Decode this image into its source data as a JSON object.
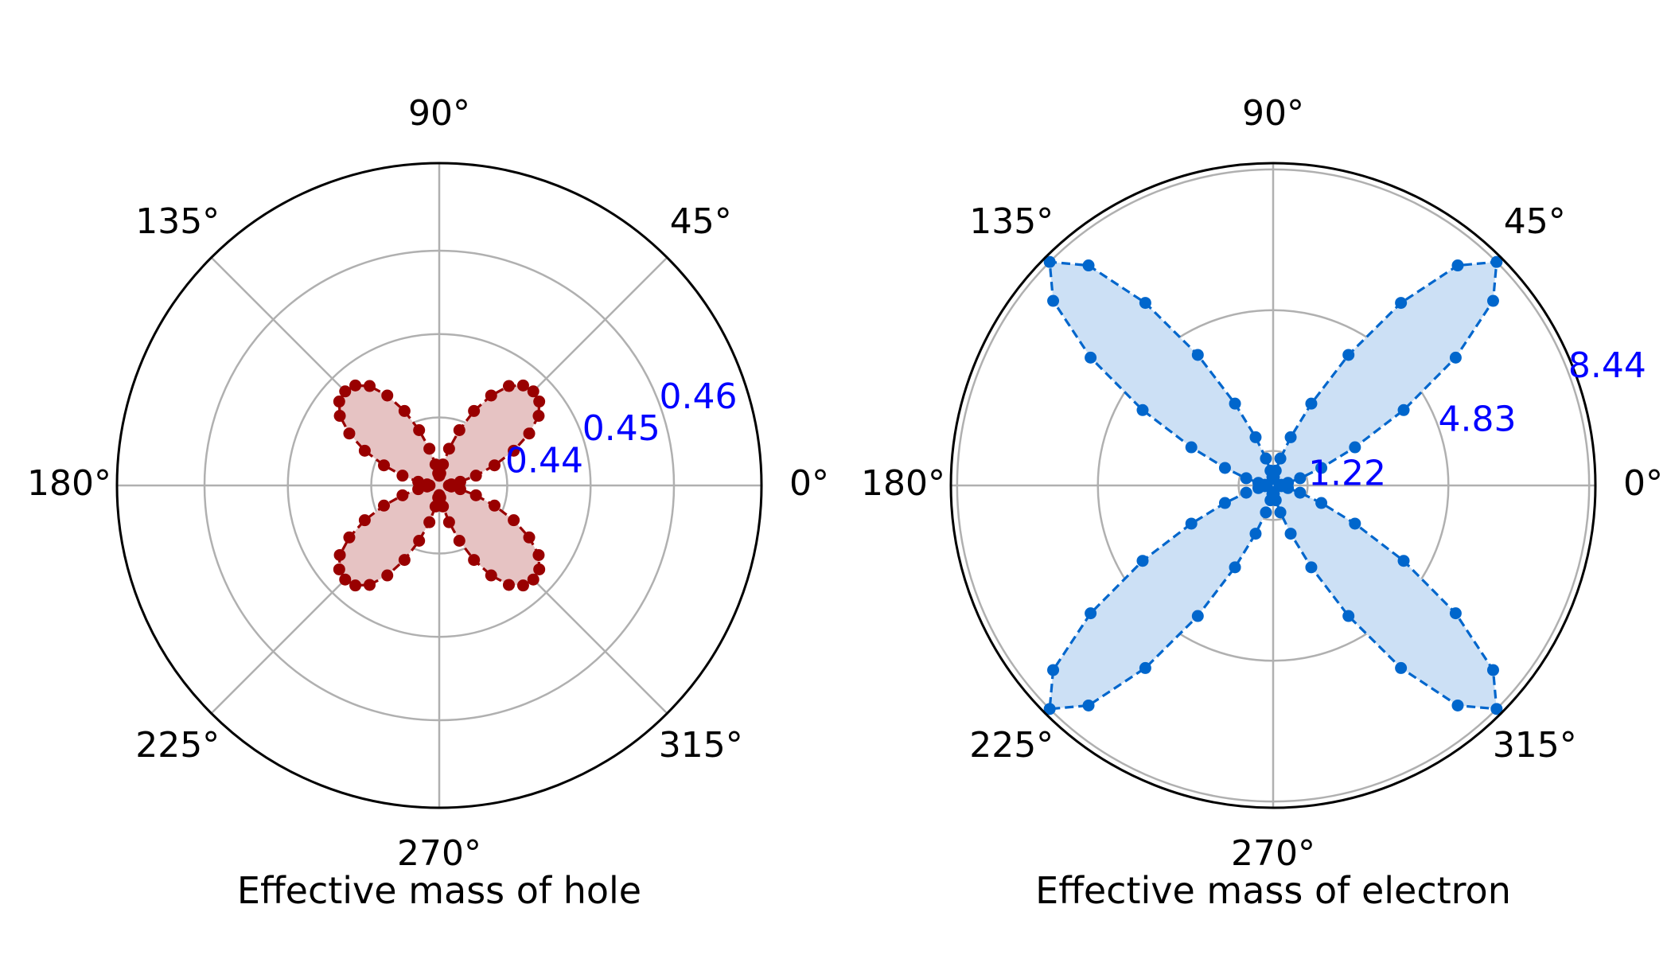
{
  "chart_data": [
    {
      "type": "polar",
      "xlabel": "Effective mass of hole",
      "theta_tick_labels": [
        "0°",
        "45°",
        "90°",
        "135°",
        "180°",
        "225°",
        "270°",
        "315°"
      ],
      "radial_tick_labels": [
        "0.44",
        "0.45",
        "0.46"
      ],
      "radial_ticks": [
        0.44,
        0.45,
        0.46
      ],
      "rlim": [
        0.433,
        0.4705
      ],
      "grid": true,
      "fill": true,
      "line_style": "dashed",
      "colors": {
        "line": "#990000",
        "fill": "#e6c3c3",
        "radial_labels": "#0000ff"
      },
      "points": {
        "theta_deg": [
          0,
          5,
          10,
          15,
          20,
          25,
          30,
          35,
          40,
          45,
          50,
          55,
          60,
          65,
          70,
          75,
          80,
          85,
          90,
          95,
          100,
          105,
          110,
          115,
          120,
          125,
          130,
          135,
          140,
          145,
          150,
          155,
          160,
          165,
          170,
          175,
          180,
          185,
          190,
          195,
          200,
          205,
          210,
          215,
          220,
          225,
          230,
          235,
          240,
          245,
          250,
          255,
          260,
          265,
          270,
          275,
          280,
          285,
          290,
          295,
          300,
          305,
          310,
          315,
          320,
          325,
          330,
          335,
          340,
          345,
          350,
          355
        ],
        "r": [
          0.433,
          0.4333,
          0.4344,
          0.4364,
          0.4389,
          0.4417,
          0.4443,
          0.4464,
          0.4475,
          0.4478,
          0.4475,
          0.4464,
          0.4443,
          0.4417,
          0.4389,
          0.4364,
          0.4344,
          0.4333,
          0.433,
          0.4333,
          0.4344,
          0.4364,
          0.4389,
          0.4417,
          0.4443,
          0.4464,
          0.4475,
          0.4478,
          0.4475,
          0.4464,
          0.4443,
          0.4417,
          0.4389,
          0.4364,
          0.4344,
          0.4333,
          0.433,
          0.4333,
          0.4344,
          0.4364,
          0.4389,
          0.4417,
          0.4443,
          0.4464,
          0.4475,
          0.4478,
          0.4475,
          0.4464,
          0.4443,
          0.4417,
          0.4389,
          0.4364,
          0.4344,
          0.4333,
          0.433,
          0.4333,
          0.4344,
          0.4364,
          0.4389,
          0.4417,
          0.4443,
          0.4464,
          0.4475,
          0.4478,
          0.4475,
          0.4464,
          0.4443,
          0.4417,
          0.4389,
          0.4364,
          0.4344,
          0.4333
        ]
      }
    },
    {
      "type": "polar",
      "xlabel": "Effective mass of electron",
      "theta_tick_labels": [
        "0°",
        "45°",
        "90°",
        "135°",
        "180°",
        "225°",
        "270°",
        "315°"
      ],
      "radial_tick_labels": [
        "1.22",
        "4.83",
        "8.44"
      ],
      "radial_ticks": [
        1.22,
        4.83,
        8.44
      ],
      "rlim": [
        0.5,
        8.6
      ],
      "grid": true,
      "fill": true,
      "line_style": "dashed",
      "colors": {
        "line": "#0066cc",
        "fill": "#cce0f5",
        "radial_labels": "#0000ff"
      },
      "points": {
        "theta_deg": [
          0,
          5,
          10,
          15,
          20,
          25,
          30,
          35,
          40,
          45,
          50,
          55,
          60,
          65,
          70,
          75,
          80,
          85,
          90,
          95,
          100,
          105,
          110,
          115,
          120,
          125,
          130,
          135,
          140,
          145,
          150,
          155,
          160,
          165,
          170,
          175,
          180,
          185,
          190,
          195,
          200,
          205,
          210,
          215,
          220,
          225,
          230,
          235,
          240,
          245,
          250,
          255,
          260,
          265,
          270,
          275,
          280,
          285,
          290,
          295,
          300,
          305,
          310,
          315,
          320,
          325,
          330,
          335,
          340,
          345,
          350,
          355
        ],
        "r": [
          0.5,
          0.55,
          0.72,
          1.05,
          1.65,
          2.65,
          4.2,
          6.05,
          7.7,
          8.44,
          7.7,
          6.05,
          4.2,
          2.65,
          1.65,
          1.05,
          0.72,
          0.55,
          0.5,
          0.55,
          0.72,
          1.05,
          1.65,
          2.65,
          4.2,
          6.05,
          7.7,
          8.44,
          7.7,
          6.05,
          4.2,
          2.65,
          1.65,
          1.05,
          0.72,
          0.55,
          0.5,
          0.55,
          0.72,
          1.05,
          1.65,
          2.65,
          4.2,
          6.05,
          7.7,
          8.44,
          7.7,
          6.05,
          4.2,
          2.65,
          1.65,
          1.05,
          0.72,
          0.55,
          0.5,
          0.55,
          0.72,
          1.05,
          1.65,
          2.65,
          4.2,
          6.05,
          7.7,
          8.44,
          7.7,
          6.05,
          4.2,
          2.65,
          1.65,
          1.05,
          0.72,
          0.55
        ]
      }
    }
  ]
}
